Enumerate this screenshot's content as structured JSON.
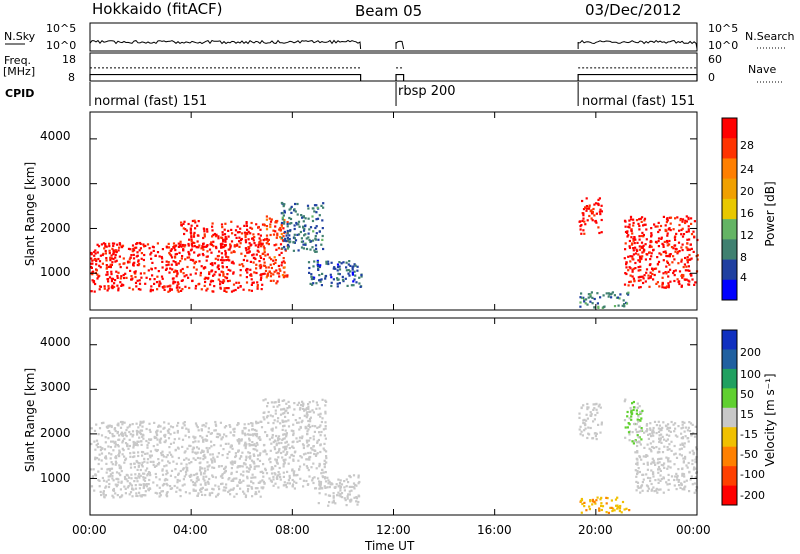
{
  "header": {
    "station": "Hokkaido (fitACF)",
    "beam": "Beam 05",
    "date": "03/Dec/2012"
  },
  "top_panels": {
    "nsky_label": "N.Sky",
    "nsky_ticks": [
      "10^5",
      "10^0"
    ],
    "nsearch_label": "N.Search",
    "nsearch_ticks": [
      "10^5",
      "10^0"
    ],
    "freq_label": "Freq.",
    "freq_unit": "[MHz]",
    "freq_ticks": [
      "18",
      "8"
    ],
    "nave_label": "Nave",
    "nave_ticks": [
      "60",
      "0"
    ],
    "cpid_label": "CPID",
    "cpid_segments": [
      {
        "label": "normal (fast) 151"
      },
      {
        "label": "rbsp 200"
      },
      {
        "label": "normal (fast) 151"
      }
    ]
  },
  "power_panel": {
    "ylabel": "Slant Range [km]",
    "yticks": [
      "4000",
      "3000",
      "2000",
      "1000"
    ],
    "colorbar_label": "Power [dB]",
    "colorbar_ticks": [
      "28",
      "24",
      "20",
      "16",
      "12",
      "8",
      "4"
    ],
    "colorbar_colors": [
      "#ff0000",
      "#ff3300",
      "#ff7f00",
      "#f0a000",
      "#e8c800",
      "#64b464",
      "#408070",
      "#2040a0",
      "#0000ff"
    ]
  },
  "velocity_panel": {
    "ylabel": "Slant Range [km]",
    "yticks": [
      "4000",
      "3000",
      "2000",
      "1000"
    ],
    "colorbar_label": "Velocity [m s⁻¹]",
    "colorbar_ticks": [
      "200",
      "100",
      "50",
      "15",
      "-15",
      "-50",
      "-100",
      "-200"
    ],
    "colorbar_colors": [
      "#1030c0",
      "#2060a0",
      "#20a060",
      "#60d030",
      "#c8c8c8",
      "#f0c000",
      "#ff8000",
      "#ff4000",
      "#ff0000"
    ]
  },
  "x_axis": {
    "ticks": [
      "00:00",
      "04:00",
      "08:00",
      "12:00",
      "16:00",
      "20:00",
      "00:00"
    ],
    "label": "Time UT"
  },
  "chart_data": {
    "type": "heatmap",
    "x_unit": "hours UT",
    "xlim": [
      0,
      24
    ],
    "ylim": [
      180,
      4600
    ],
    "data_intervals_hours": [
      [
        0,
        10.7
      ],
      [
        12.1,
        12.4
      ],
      [
        19.3,
        24
      ]
    ],
    "cpid_intervals": [
      {
        "start": 0,
        "end": 12.1,
        "cpid": "normal (fast) 151"
      },
      {
        "start": 12.1,
        "end": 19.3,
        "cpid": "rbsp 200"
      },
      {
        "start": 19.3,
        "end": 24,
        "cpid": "normal (fast) 151"
      }
    ],
    "freq_mhz": {
      "ylim": [
        8,
        18
      ],
      "value": 10.3
    },
    "nave": {
      "ylim": [
        0,
        60
      ],
      "value": 28
    },
    "power_db": {
      "clim": [
        0,
        32
      ],
      "regions": [
        {
          "t0": 0.0,
          "t1": 6.8,
          "r0": 600,
          "r1": 1700,
          "value": 30
        },
        {
          "t0": 3.5,
          "t1": 6.8,
          "r0": 1600,
          "r1": 2200,
          "value": 30
        },
        {
          "t0": 6.8,
          "t1": 7.8,
          "r0": 800,
          "r1": 2300,
          "value": 27
        },
        {
          "t0": 7.5,
          "t1": 9.2,
          "r0": 1500,
          "r1": 2600,
          "value": 8
        },
        {
          "t0": 8.6,
          "t1": 10.7,
          "r0": 700,
          "r1": 1300,
          "value": 6
        },
        {
          "t0": 19.3,
          "t1": 20.2,
          "r0": 1900,
          "r1": 2700,
          "value": 29
        },
        {
          "t0": 21.1,
          "t1": 24.0,
          "r0": 700,
          "r1": 2300,
          "value": 30
        },
        {
          "t0": 19.3,
          "t1": 21.3,
          "r0": 250,
          "r1": 600,
          "value": 9
        }
      ]
    },
    "velocity_ms": {
      "clim": [
        -250,
        250
      ],
      "regions": [
        {
          "t0": 0.0,
          "t1": 6.8,
          "r0": 600,
          "r1": 2300,
          "value": 0
        },
        {
          "t0": 6.8,
          "t1": 9.3,
          "r0": 800,
          "r1": 2800,
          "value": 0
        },
        {
          "t0": 9.0,
          "t1": 10.7,
          "r0": 400,
          "r1": 1100,
          "value": 0
        },
        {
          "t0": 19.3,
          "t1": 20.2,
          "r0": 1900,
          "r1": 2700,
          "value": 0
        },
        {
          "t0": 21.1,
          "t1": 21.8,
          "r0": 1800,
          "r1": 2800,
          "value": 30
        },
        {
          "t0": 21.5,
          "t1": 24.0,
          "r0": 700,
          "r1": 2300,
          "value": 0
        },
        {
          "t0": 19.3,
          "t1": 21.3,
          "r0": 250,
          "r1": 600,
          "value": -80
        }
      ]
    }
  }
}
